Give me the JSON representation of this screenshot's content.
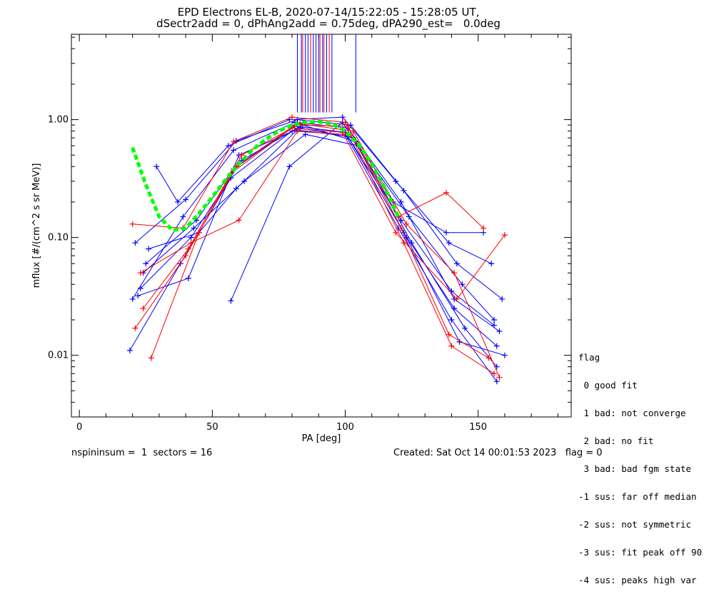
{
  "title_line1": "EPD Electrons EL-B, 2020-07-14/15:22:05 - 15:28:05 UT,",
  "title_line2": "dSectr2add = 0, dPhAng2add = 0.75deg, dPA290_est=   0.0deg",
  "footer_left": "nspininsum =  1  sectors = 16",
  "footer_right": "Created: Sat Oct 14 00:01:53 2023   flag = 0",
  "legend": {
    "title": "flag",
    "items": [
      " 0 good fit",
      " 1 bad: not converge",
      " 2 bad: no fit",
      " 3 bad: bad fgm state",
      "-1 sus: far off median",
      "-2 sus: not symmetric",
      "-3 sus: fit peak off 90",
      "-4 sus: peaks high var"
    ]
  },
  "colors": {
    "blue": "#0000ff",
    "red": "#ff0000",
    "green": "#00ff00",
    "axis": "#000000"
  },
  "chart_data": {
    "type": "line",
    "xlabel": "PA [deg]",
    "ylabel": "mflux [#/(cm^2 s sr MeV)]",
    "xlim": [
      -3,
      185
    ],
    "ylim": [
      0.003,
      5.3
    ],
    "yscale": "log",
    "xticks": [
      0,
      50,
      100,
      150
    ],
    "ytick_labels": [
      {
        "value": 0.01,
        "label": "0.01"
      },
      {
        "value": 0.1,
        "label": "0.10"
      },
      {
        "value": 1.0,
        "label": "1.00"
      }
    ],
    "series": [
      {
        "color": "blue",
        "pa": [
          19,
          38,
          57,
          80,
          100,
          120,
          140,
          157
        ],
        "flux": [
          0.011,
          0.06,
          0.32,
          0.8,
          0.75,
          0.12,
          0.02,
          0.006
        ]
      },
      {
        "color": "blue",
        "pa": [
          20,
          39,
          58,
          81,
          101,
          121,
          141,
          158
        ],
        "flux": [
          0.03,
          0.15,
          0.55,
          0.95,
          0.85,
          0.2,
          0.03,
          0.016
        ]
      },
      {
        "color": "blue",
        "pa": [
          21,
          40,
          59,
          82,
          102,
          122,
          142,
          159
        ],
        "flux": [
          0.09,
          0.21,
          0.66,
          1.0,
          0.9,
          0.25,
          0.06,
          0.03
        ]
      },
      {
        "color": "blue",
        "pa": [
          22,
          41,
          60,
          83,
          103,
          123,
          143,
          160
        ],
        "flux": [
          0.032,
          0.045,
          0.5,
          0.85,
          0.7,
          0.1,
          0.013,
          0.01
        ]
      },
      {
        "color": "blue",
        "pa": [
          23,
          42,
          61,
          84,
          104,
          124,
          144,
          156
        ],
        "flux": [
          0.037,
          0.1,
          0.45,
          0.9,
          0.65,
          0.15,
          0.04,
          0.02
        ]
      },
      {
        "color": "blue",
        "pa": [
          24,
          43,
          62,
          85,
          105,
          125,
          145,
          157
        ],
        "flux": [
          0.05,
          0.12,
          0.3,
          0.75,
          0.6,
          0.09,
          0.017,
          0.008
        ]
      },
      {
        "color": "blue",
        "pa": [
          29,
          37,
          56,
          79,
          99,
          119,
          139,
          155
        ],
        "flux": [
          0.4,
          0.2,
          0.6,
          1.0,
          1.05,
          0.3,
          0.09,
          0.06
        ]
      },
      {
        "color": "blue",
        "pa": [
          57,
          79,
          99,
          118,
          138,
          152
        ],
        "flux": [
          0.029,
          0.4,
          0.95,
          0.2,
          0.11,
          0.11
        ]
      },
      {
        "color": "blue",
        "pa": [
          25,
          44,
          58,
          81,
          100,
          121,
          140,
          156
        ],
        "flux": [
          0.06,
          0.14,
          0.38,
          0.88,
          0.78,
          0.14,
          0.035,
          0.018
        ]
      },
      {
        "color": "blue",
        "pa": [
          26,
          45,
          59,
          82,
          101,
          122,
          141,
          157
        ],
        "flux": [
          0.08,
          0.11,
          0.26,
          0.82,
          0.72,
          0.11,
          0.025,
          0.012
        ]
      },
      {
        "color": "red",
        "pa": [
          20,
          39,
          58,
          80,
          100,
          120,
          138,
          152
        ],
        "flux": [
          0.13,
          0.12,
          0.65,
          1.05,
          0.95,
          0.15,
          0.24,
          0.12
        ]
      },
      {
        "color": "red",
        "pa": [
          21,
          40,
          59,
          81,
          101,
          121,
          139,
          154
        ],
        "flux": [
          0.017,
          0.07,
          0.4,
          0.9,
          0.88,
          0.12,
          0.015,
          0.0095
        ]
      },
      {
        "color": "red",
        "pa": [
          23,
          42,
          60,
          82,
          102,
          122,
          140,
          156
        ],
        "flux": [
          0.05,
          0.09,
          0.14,
          0.8,
          0.74,
          0.09,
          0.012,
          0.007
        ]
      },
      {
        "color": "red",
        "pa": [
          27,
          45,
          61,
          83,
          103,
          123,
          141,
          158
        ],
        "flux": [
          0.0095,
          0.11,
          0.5,
          0.92,
          0.8,
          0.13,
          0.05,
          0.0065
        ]
      },
      {
        "color": "red",
        "pa": [
          24,
          41,
          57,
          80,
          99,
          119,
          142,
          160
        ],
        "flux": [
          0.025,
          0.08,
          0.35,
          0.85,
          0.78,
          0.11,
          0.03,
          0.105
        ]
      }
    ],
    "fit": {
      "color": "green",
      "pa": [
        20,
        25,
        30,
        35,
        40,
        45,
        50,
        55,
        60,
        65,
        70,
        75,
        80,
        85,
        90,
        95,
        100,
        105,
        110,
        115,
        120
      ],
      "flux": [
        0.58,
        0.28,
        0.15,
        0.115,
        0.12,
        0.16,
        0.22,
        0.31,
        0.42,
        0.55,
        0.68,
        0.8,
        0.9,
        0.95,
        0.96,
        0.92,
        0.8,
        0.62,
        0.42,
        0.26,
        0.15
      ]
    },
    "spikes": {
      "blue": [
        82,
        83.5,
        85,
        86,
        88,
        89,
        90,
        91.5,
        93,
        95,
        104
      ],
      "red": [
        84,
        87,
        90.5,
        92,
        94
      ]
    }
  }
}
